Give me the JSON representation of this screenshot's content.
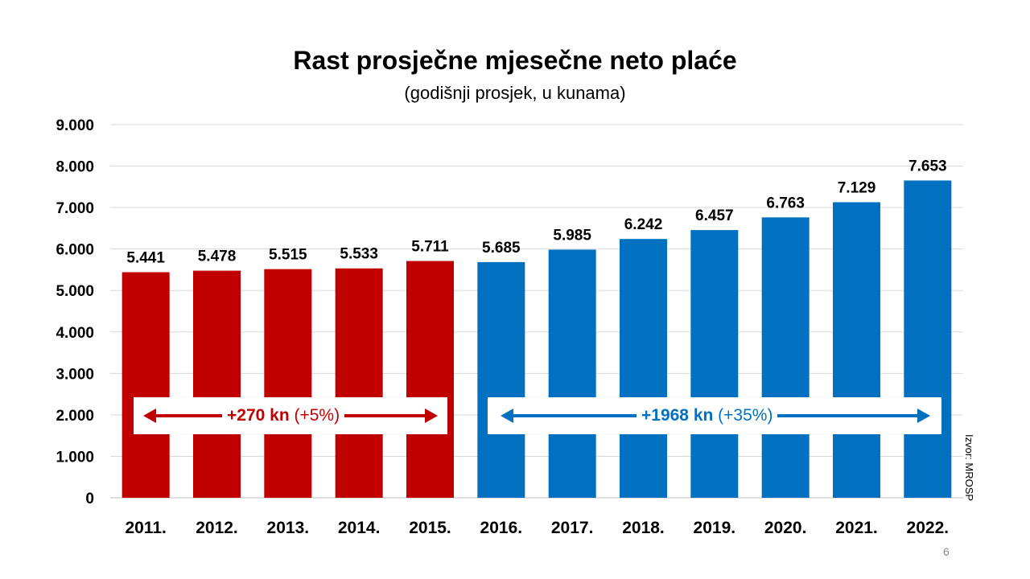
{
  "slide": {
    "title": "Rast prosječne mjesečne neto plaće",
    "subtitle": "(godišnji prosjek, u kunama)",
    "source": "Izvor: MROSP",
    "page_number": "6"
  },
  "colors": {
    "red": "#c00000",
    "blue": "#0070c0",
    "grid": "#d9d9d9"
  },
  "chart_data": {
    "type": "bar",
    "categories": [
      "2011.",
      "2012.",
      "2013.",
      "2014.",
      "2015.",
      "2016.",
      "2017.",
      "2018.",
      "2019.",
      "2020.",
      "2021.",
      "2022."
    ],
    "values": [
      5441,
      5478,
      5515,
      5533,
      5711,
      5685,
      5985,
      6242,
      6457,
      6763,
      7129,
      7653
    ],
    "value_labels": [
      "5.441",
      "5.478",
      "5.515",
      "5.533",
      "5.711",
      "5.685",
      "5.985",
      "6.242",
      "6.457",
      "6.763",
      "7.129",
      "7.653"
    ],
    "bar_colors": [
      "#c00000",
      "#c00000",
      "#c00000",
      "#c00000",
      "#c00000",
      "#0070c0",
      "#0070c0",
      "#0070c0",
      "#0070c0",
      "#0070c0",
      "#0070c0",
      "#0070c0"
    ],
    "yticks": [
      0,
      1000,
      2000,
      3000,
      4000,
      5000,
      6000,
      7000,
      8000,
      9000
    ],
    "ytick_labels": [
      "0",
      "1.000",
      "2.000",
      "3.000",
      "4.000",
      "5.000",
      "6.000",
      "7.000",
      "8.000",
      "9.000"
    ],
    "ylim": [
      0,
      9000
    ],
    "grid": true,
    "annotations": [
      {
        "bold": "+270 kn",
        "rest": " (+5%)",
        "color": "#c00000"
      },
      {
        "bold": "+1968 kn",
        "rest": " (+35%)",
        "color": "#0070c0"
      }
    ]
  }
}
